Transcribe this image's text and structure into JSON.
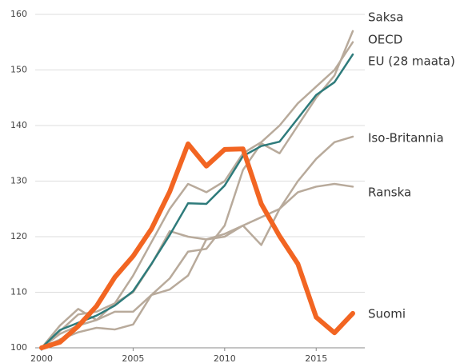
{
  "chart_data": {
    "type": "line",
    "x": [
      2000,
      2001,
      2002,
      2003,
      2004,
      2005,
      2006,
      2007,
      2008,
      2009,
      2010,
      2011,
      2012,
      2013,
      2014,
      2015,
      2016,
      2017
    ],
    "xlim": [
      2000,
      2017
    ],
    "xticks": [
      2000,
      2005,
      2010,
      2015
    ],
    "ylim": [
      100,
      160
    ],
    "yticks": [
      100,
      110,
      120,
      130,
      140,
      150,
      160
    ],
    "grid": true,
    "series": [
      {
        "name": "Saksa",
        "color": "#b8aa9b",
        "values": [
          100,
          101.5,
          102.8,
          103.6,
          103.3,
          104.2,
          109.5,
          112.5,
          117.3,
          117.8,
          122,
          132,
          136.8,
          135,
          140,
          145,
          149,
          157
        ]
      },
      {
        "name": "OECD",
        "color": "#b8aa9b",
        "values": [
          100,
          104,
          107,
          105,
          108,
          113,
          119,
          125,
          129.5,
          128,
          130,
          135,
          137,
          140,
          144,
          147,
          150,
          155
        ]
      },
      {
        "name": "EU (28 maata)",
        "color": "#2e7b7b",
        "values": [
          100,
          103.2,
          104.5,
          105.8,
          107.6,
          110.2,
          115.1,
          120.3,
          126,
          125.9,
          129.2,
          134.5,
          136.3,
          137.1,
          141.3,
          145.5,
          147.8,
          152.8
        ]
      },
      {
        "name": "Iso-Britannia",
        "color": "#b8aa9b",
        "values": [
          100,
          103,
          106,
          106.5,
          108,
          110,
          115,
          121,
          120,
          119.5,
          120.5,
          122,
          118.5,
          125,
          130,
          134,
          137,
          138
        ]
      },
      {
        "name": "Ranska",
        "color": "#b8aa9b",
        "values": [
          100,
          102.5,
          104,
          105,
          106.5,
          106.5,
          109.5,
          110.5,
          113,
          119.5,
          120,
          122,
          123.5,
          125,
          128,
          129,
          129.5,
          129
        ]
      },
      {
        "name": "Suomi",
        "color": "#f26522",
        "values": [
          100,
          101,
          103.9,
          107.5,
          112.7,
          116.5,
          121.4,
          128.1,
          136.7,
          132.7,
          135.7,
          135.8,
          125.9,
          120.1,
          115.1,
          105.5,
          102.7,
          106.2
        ]
      }
    ]
  }
}
